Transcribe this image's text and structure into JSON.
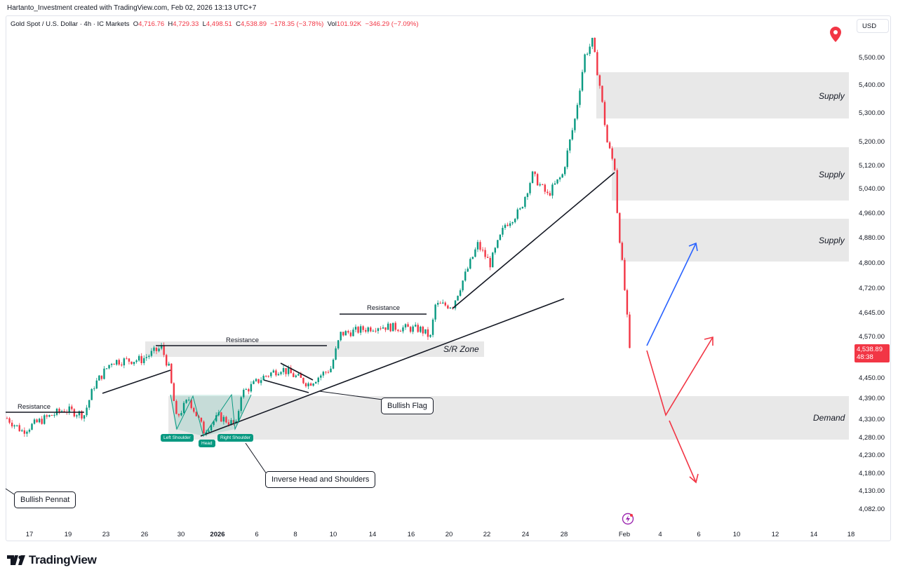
{
  "credit": "Hartanto_Investment created with TradingView.com, Feb 02, 2026 13:13 UTC+7",
  "legend": {
    "symbol": "Gold Spot / U.S. Dollar · 4h · IC Markets",
    "o_label": "O",
    "o": "4,716.76",
    "h_label": "H",
    "h": "4,729.33",
    "l_label": "L",
    "l": "4,498.51",
    "c_label": "C",
    "c": "4,538.89",
    "change": "−178.35 (−3.78%)",
    "vol_label": "Vol",
    "vol": "101.92K",
    "vol_change": "−346.29 (−7.09%)"
  },
  "currency": "USD",
  "y_ticks": [
    "5,500.00",
    "5,400.00",
    "5,300.00",
    "5,200.00",
    "5,120.00",
    "5,040.00",
    "4,960.00",
    "4,880.00",
    "4,800.00",
    "4,720.00",
    "4,645.00",
    "4,570.00",
    "4,450.00",
    "4,390.00",
    "4,330.00",
    "4,280.00",
    "4,230.00",
    "4,180.00",
    "4,130.00",
    "4,082.00"
  ],
  "x_ticks": [
    "17",
    "19",
    "23",
    "26",
    "30",
    "2026",
    "6",
    "8",
    "10",
    "14",
    "16",
    "20",
    "22",
    "24",
    "28",
    "Feb",
    "4",
    "6",
    "10",
    "12",
    "14",
    "18"
  ],
  "price_tag": {
    "price": "4,538.89",
    "countdown": "48:38"
  },
  "annotations": {
    "supply": "Supply",
    "demand": "Demand",
    "sr_zone": "S/R Zone",
    "resistance": "Resistance",
    "bullish_flag": "Bullish Flag",
    "inverse_hs": "Inverse Head and Shoulders",
    "bullish_pennant": "Bullish Pennat",
    "left_shoulder": "Left Shoulder",
    "head": "Head",
    "right_shoulder": "Right Shoulder"
  },
  "colors": {
    "up": "#089981",
    "down": "#f23645",
    "zone": "#e8e8e8",
    "bull_arrow": "#2962ff",
    "bear_arrow": "#f23645"
  },
  "brand": "TradingView",
  "chart_data": {
    "type": "candlestick",
    "timeframe": "4h",
    "y_scale": "log",
    "ylim": [
      4060,
      5600
    ],
    "price_path": [
      {
        "bar": 0,
        "price": 4335
      },
      {
        "bar": 6,
        "price": 4300
      },
      {
        "bar": 14,
        "price": 4330
      },
      {
        "bar": 23,
        "price": 4360
      },
      {
        "bar": 31,
        "price": 4345
      },
      {
        "bar": 35,
        "price": 4430
      },
      {
        "bar": 42,
        "price": 4500
      },
      {
        "bar": 54,
        "price": 4505
      },
      {
        "bar": 62,
        "price": 4540
      },
      {
        "bar": 65,
        "price": 4480
      },
      {
        "bar": 68,
        "price": 4335
      },
      {
        "bar": 73,
        "price": 4390
      },
      {
        "bar": 79,
        "price": 4300
      },
      {
        "bar": 85,
        "price": 4340
      },
      {
        "bar": 92,
        "price": 4315
      },
      {
        "bar": 94,
        "price": 4405
      },
      {
        "bar": 103,
        "price": 4455
      },
      {
        "bar": 110,
        "price": 4480
      },
      {
        "bar": 121,
        "price": 4435
      },
      {
        "bar": 130,
        "price": 4480
      },
      {
        "bar": 134,
        "price": 4580
      },
      {
        "bar": 149,
        "price": 4605
      },
      {
        "bar": 166,
        "price": 4595
      },
      {
        "bar": 170,
        "price": 4570
      },
      {
        "bar": 172,
        "price": 4670
      },
      {
        "bar": 179,
        "price": 4670
      },
      {
        "bar": 189,
        "price": 4860
      },
      {
        "bar": 194,
        "price": 4800
      },
      {
        "bar": 200,
        "price": 4925
      },
      {
        "bar": 206,
        "price": 4970
      },
      {
        "bar": 211,
        "price": 5090
      },
      {
        "bar": 217,
        "price": 5020
      },
      {
        "bar": 223,
        "price": 5090
      },
      {
        "bar": 228,
        "price": 5280
      },
      {
        "bar": 232,
        "price": 5510
      },
      {
        "bar": 235,
        "price": 5560
      },
      {
        "bar": 238,
        "price": 5400
      },
      {
        "bar": 241,
        "price": 5200
      },
      {
        "bar": 244,
        "price": 5115
      },
      {
        "bar": 245,
        "price": 4970
      },
      {
        "bar": 246,
        "price": 4880
      },
      {
        "bar": 248,
        "price": 4716.76
      },
      {
        "bar": 250,
        "price": 4538.89
      }
    ]
  }
}
